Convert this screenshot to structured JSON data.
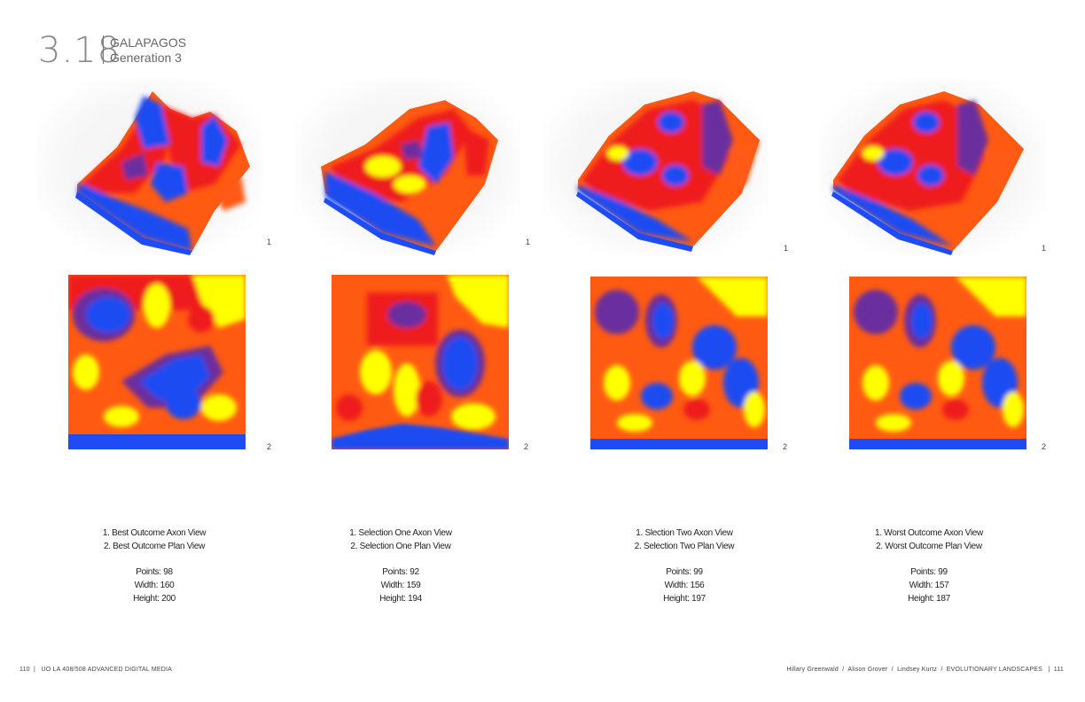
{
  "header": {
    "number": "3.18",
    "title": "GALAPAGOS",
    "subtitle": "Generation 3"
  },
  "figure_label_axon": "1",
  "figure_label_plan": "2",
  "palette": {
    "blue": "#1e4cf2",
    "purple": "#6a2e9e",
    "red": "#ee1e1e",
    "orange": "#ff5a12",
    "yellow": "#ffff00"
  },
  "outcomes": [
    {
      "line1": "1. Best Outcome Axon View",
      "line2": "2. Best Outcome Plan View",
      "points": "Points: 98",
      "width": "Width: 160",
      "height": "Height: 200"
    },
    {
      "line1": "1. Selection One Axon View",
      "line2": "2. Selection One  Plan View",
      "points": "Points: 92",
      "width": "Width: 159",
      "height": "Height: 194"
    },
    {
      "line1": "1. Slection Two Axon View",
      "line2": "2. Selection Two Plan View",
      "points": "Points: 99",
      "width": "Width: 156",
      "height": "Height: 197"
    },
    {
      "line1": "1. Worst Outcome Axon View",
      "line2": "2. Worst Outcome Plan View",
      "points": "Points: 99",
      "width": "Width: 157",
      "height": "Height: 187"
    }
  ],
  "footer": {
    "left": "110  |   UO LA 408/508 ADVANCED DIGITAL MEDIA",
    "right": "Hillary Greenwald  /  Alison Grover  /  Lindsey Kurtz  /  EVOLUTIONARY LANDSCAPES   |  111"
  }
}
